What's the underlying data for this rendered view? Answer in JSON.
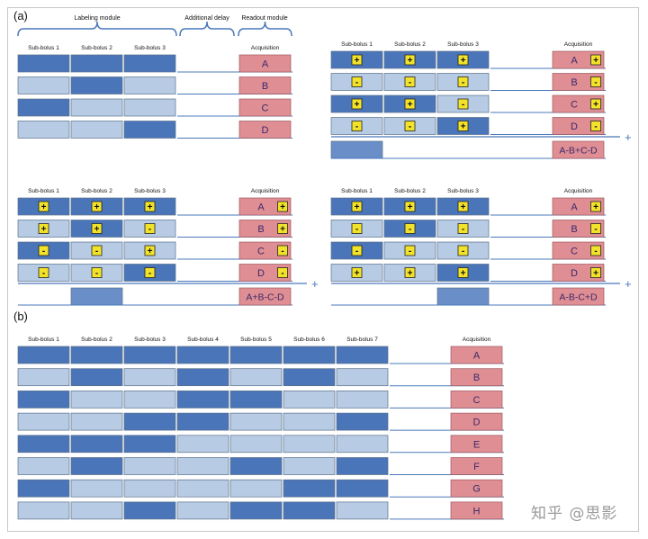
{
  "panel_labels": {
    "a": "(a)",
    "b": "(b)"
  },
  "modules": {
    "labeling": "Labeling module",
    "delay": "Additional delay",
    "readout": "Readout module"
  },
  "acquisition_label": "Acquisition",
  "sub_bolus_label_prefix": "Sub-bolus ",
  "plus_sign": "+",
  "sign_plus": "+",
  "sign_minus": "-",
  "letters": [
    "A",
    "B",
    "C",
    "D"
  ],
  "colors": {
    "dark": "#4a75b8",
    "light": "#b7cce4",
    "acq": "#df8e93",
    "sign_bg": "#f2e229",
    "text_acq": "#3a2a6a",
    "line": "#4a78bb"
  },
  "panel_a": [
    {
      "id": "scheme",
      "show_module_headers": true,
      "show_signs": false,
      "rows": [
        [
          "D",
          "D",
          "D"
        ],
        [
          "L",
          "D",
          "L"
        ],
        [
          "D",
          "L",
          "L"
        ],
        [
          "L",
          "L",
          "D"
        ]
      ],
      "signs": [],
      "combo": "",
      "combo_cell": -1,
      "show_plus": false
    },
    {
      "id": "combo-1",
      "show_module_headers": false,
      "show_signs": true,
      "rows": [
        [
          "D",
          "D",
          "D"
        ],
        [
          "L",
          "L",
          "L"
        ],
        [
          "D",
          "D",
          "L"
        ],
        [
          "L",
          "L",
          "D"
        ]
      ],
      "signs": [
        [
          "+",
          "+",
          "+",
          "+"
        ],
        [
          "-",
          "-",
          "-",
          "-"
        ],
        [
          "+",
          "+",
          "-",
          "+"
        ],
        [
          "-",
          "-",
          "+",
          "-"
        ]
      ],
      "combo": "A-B+C-D",
      "combo_cell": 0,
      "show_plus": true
    },
    {
      "id": "combo-2",
      "show_module_headers": false,
      "show_signs": true,
      "rows": [
        [
          "D",
          "D",
          "D"
        ],
        [
          "L",
          "D",
          "L"
        ],
        [
          "D",
          "L",
          "L"
        ],
        [
          "L",
          "L",
          "D"
        ]
      ],
      "signs": [
        [
          "+",
          "+",
          "+",
          "+"
        ],
        [
          "+",
          "+",
          "-",
          "+"
        ],
        [
          "-",
          "-",
          "+",
          "-"
        ],
        [
          "-",
          "-",
          "-",
          "-"
        ]
      ],
      "combo": "A+B-C-D",
      "combo_cell": 1,
      "show_plus": true
    },
    {
      "id": "combo-3",
      "show_module_headers": false,
      "show_signs": true,
      "rows": [
        [
          "D",
          "D",
          "D"
        ],
        [
          "L",
          "D",
          "L"
        ],
        [
          "D",
          "L",
          "L"
        ],
        [
          "L",
          "L",
          "D"
        ]
      ],
      "signs": [
        [
          "+",
          "+",
          "+",
          "+"
        ],
        [
          "-",
          "-",
          "-",
          "-"
        ],
        [
          "-",
          "-",
          "-",
          "-"
        ],
        [
          "+",
          "+",
          "+",
          "+"
        ]
      ],
      "combo": "A-B-C+D",
      "combo_cell": 2,
      "show_plus": true
    }
  ],
  "panel_b": {
    "rows": [
      [
        "D",
        "D",
        "D",
        "D",
        "D",
        "D",
        "D"
      ],
      [
        "L",
        "D",
        "L",
        "D",
        "L",
        "D",
        "L"
      ],
      [
        "D",
        "L",
        "L",
        "D",
        "D",
        "L",
        "L"
      ],
      [
        "L",
        "L",
        "D",
        "D",
        "L",
        "L",
        "D"
      ],
      [
        "D",
        "D",
        "D",
        "L",
        "L",
        "L",
        "L"
      ],
      [
        "L",
        "D",
        "L",
        "L",
        "D",
        "L",
        "D"
      ],
      [
        "D",
        "L",
        "L",
        "L",
        "L",
        "D",
        "D"
      ],
      [
        "L",
        "L",
        "D",
        "L",
        "D",
        "D",
        "L"
      ]
    ],
    "letters": [
      "A",
      "B",
      "C",
      "D",
      "E",
      "F",
      "G",
      "H"
    ]
  },
  "watermark": "知乎 @思影"
}
